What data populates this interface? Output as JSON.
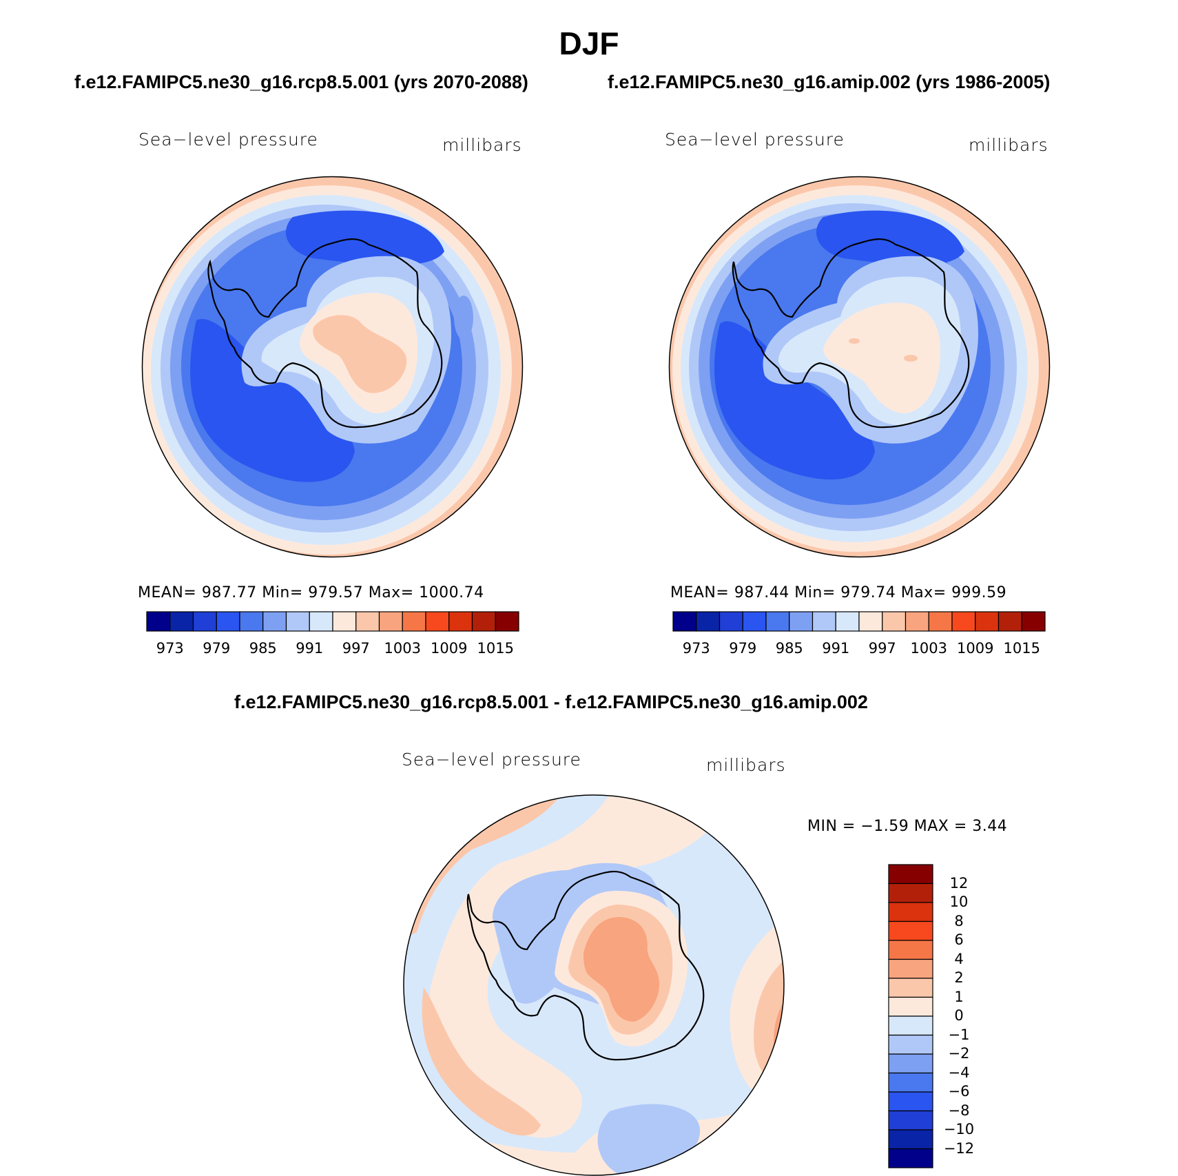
{
  "title": "DJF",
  "panels": [
    {
      "case": "f.e12.FAMIPC5.ne30_g16.rcp8.5.001 (yrs 2070-2088)",
      "variable": "Sea−level pressure",
      "units": "millibars",
      "stats": "MEAN= 987.77   Min= 979.57   Max= 1000.74",
      "colorbar_ticks": [
        "973",
        "979",
        "985",
        "991",
        "997",
        "1003",
        "1009",
        "1015"
      ]
    },
    {
      "case": "f.e12.FAMIPC5.ne30_g16.amip.002 (yrs 1986-2005)",
      "variable": "Sea−level pressure",
      "units": "millibars",
      "stats": "MEAN= 987.44   Min= 979.74   Max= 999.59",
      "colorbar_ticks": [
        "973",
        "979",
        "985",
        "991",
        "997",
        "1003",
        "1009",
        "1015"
      ]
    }
  ],
  "diff": {
    "case": "f.e12.FAMIPC5.ne30_g16.rcp8.5.001 - f.e12.FAMIPC5.ne30_g16.amip.002",
    "variable": "Sea−level pressure",
    "units": "millibars",
    "stats": "MIN =   −1.59 MAX =    3.44",
    "colorbar_ticks": [
      "12",
      "10",
      "8",
      "6",
      "4",
      "2",
      "1",
      "0",
      "−1",
      "−2",
      "−4",
      "−6",
      "−8",
      "−10",
      "−12"
    ]
  },
  "colors": {
    "abs_scale": [
      "#00008b",
      "#0a24a8",
      "#1f3fd6",
      "#2a55f0",
      "#4a78ee",
      "#7ea0f3",
      "#b0c8f8",
      "#d8e8fb",
      "#fde9dc",
      "#fbc7ab",
      "#f8a47e",
      "#f57747",
      "#f7491d",
      "#db330e",
      "#b3200a",
      "#870000"
    ],
    "diff_scale": [
      "#870000",
      "#b3200a",
      "#db330e",
      "#f7491d",
      "#f57747",
      "#f8a47e",
      "#fbc7ab",
      "#fde9dc",
      "#d8e8fb",
      "#b0c8f8",
      "#7ea0f3",
      "#4a78ee",
      "#2a55f0",
      "#1f3fd6",
      "#0a24a8",
      "#00008b"
    ]
  }
}
